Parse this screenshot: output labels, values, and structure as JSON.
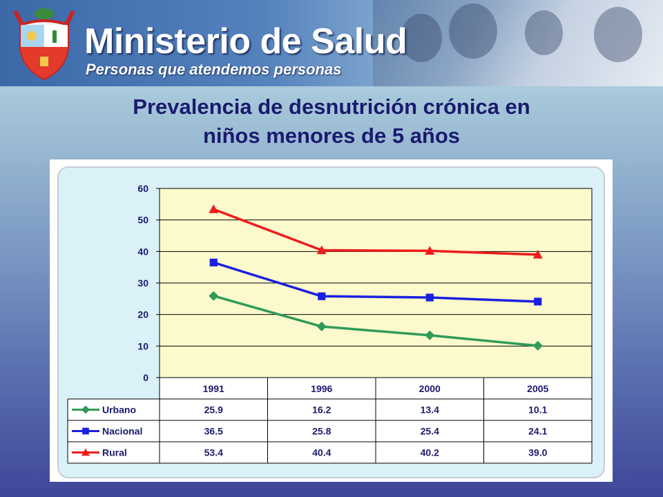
{
  "header": {
    "ministry": "Ministerio de Salud",
    "tagline": "Personas que atendemos personas"
  },
  "slide": {
    "title_line1": "Prevalencia de desnutrición crónica en",
    "title_line2": "niños menores de 5 años"
  },
  "colors": {
    "urbano": "#2e9b58",
    "nacional": "#1a20e0",
    "rural": "#ee1c1c",
    "plot_bg": "#fcf9cc"
  },
  "chart_data": {
    "type": "line",
    "title": "",
    "xlabel": "",
    "ylabel": "",
    "ylim": [
      0,
      60
    ],
    "yticks": [
      0,
      10,
      20,
      30,
      40,
      50,
      60
    ],
    "grid": true,
    "categories": [
      "1991",
      "1996",
      "2000",
      "2005"
    ],
    "series": [
      {
        "name": "Urbano",
        "color": "#2e9b58",
        "marker": "diamond",
        "values": [
          25.9,
          16.2,
          13.4,
          10.1
        ],
        "labels": [
          "25.9",
          "16.2",
          "13.4",
          "10.1"
        ]
      },
      {
        "name": "Nacional",
        "color": "#1a20e0",
        "marker": "square",
        "values": [
          36.5,
          25.8,
          25.4,
          24.1
        ],
        "labels": [
          "36.5",
          "25.8",
          "25.4",
          "24.1"
        ]
      },
      {
        "name": "Rural",
        "color": "#ee1c1c",
        "marker": "triangle",
        "values": [
          53.4,
          40.4,
          40.2,
          39.0
        ],
        "labels": [
          "53.4",
          "40.4",
          "40.2",
          "39.0"
        ]
      }
    ],
    "legend": "data-table-below"
  }
}
